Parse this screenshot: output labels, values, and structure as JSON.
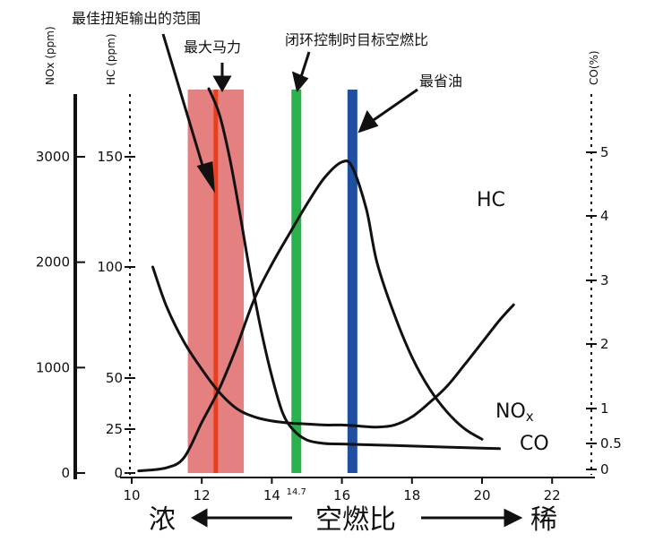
{
  "chart_data": {
    "type": "line",
    "xlabel": "空燃比",
    "x_ticks": [
      10,
      12,
      14,
      16,
      18,
      20,
      22
    ],
    "x_extra_tick": "14.7",
    "xlim": [
      10,
      23
    ],
    "axes": {
      "nox": {
        "name": "NOx (ppm)",
        "ticks": [
          0,
          1000,
          2000,
          3000
        ],
        "lim": [
          0,
          3500
        ]
      },
      "hc": {
        "name": "HC (ppm)",
        "ticks": [
          "0",
          "25",
          "50",
          "100",
          "150"
        ]
      },
      "co": {
        "name": "CO(%)",
        "ticks": [
          "0",
          "0.5",
          "1",
          "2",
          "3",
          "4",
          "5"
        ]
      }
    },
    "series": [
      {
        "name": "HC",
        "axis": "hc",
        "color": "#111111",
        "points": [
          [
            10.6,
            100
          ],
          [
            11,
            82
          ],
          [
            11.5,
            66
          ],
          [
            12,
            54
          ],
          [
            12.5,
            43
          ],
          [
            13,
            35
          ],
          [
            13.5,
            31
          ],
          [
            14,
            29
          ],
          [
            14.5,
            28
          ],
          [
            15,
            27.5
          ],
          [
            15.5,
            27
          ],
          [
            16,
            27
          ],
          [
            16.5,
            26.5
          ],
          [
            17,
            26
          ],
          [
            17.5,
            27
          ],
          [
            18,
            31
          ],
          [
            18.5,
            38
          ],
          [
            19,
            46
          ],
          [
            19.5,
            56
          ],
          [
            20,
            66
          ],
          [
            20.5,
            76
          ],
          [
            20.9,
            83
          ]
        ]
      },
      {
        "name": "NOx",
        "axis": "nox",
        "color": "#111111",
        "points": [
          [
            10.2,
            20
          ],
          [
            11,
            50
          ],
          [
            11.5,
            150
          ],
          [
            12,
            480
          ],
          [
            12.5,
            800
          ],
          [
            13,
            1200
          ],
          [
            13.5,
            1650
          ],
          [
            14,
            1980
          ],
          [
            14.5,
            2270
          ],
          [
            15,
            2550
          ],
          [
            15.5,
            2800
          ],
          [
            16,
            2950
          ],
          [
            16.3,
            2900
          ],
          [
            16.7,
            2500
          ],
          [
            17,
            2000
          ],
          [
            17.5,
            1500
          ],
          [
            18,
            1100
          ],
          [
            18.5,
            800
          ],
          [
            19,
            580
          ],
          [
            19.5,
            420
          ],
          [
            20,
            320
          ]
        ]
      },
      {
        "name": "CO",
        "axis": "co",
        "color": "#111111",
        "points": [
          [
            12.2,
            6.0
          ],
          [
            12.5,
            5.6
          ],
          [
            12.8,
            4.9
          ],
          [
            13.1,
            4.0
          ],
          [
            13.4,
            3.05
          ],
          [
            13.7,
            2.2
          ],
          [
            14,
            1.5
          ],
          [
            14.3,
            0.95
          ],
          [
            14.6,
            0.7
          ],
          [
            15,
            0.55
          ],
          [
            15.5,
            0.5
          ],
          [
            16,
            0.49
          ],
          [
            17,
            0.47
          ],
          [
            18,
            0.45
          ],
          [
            19,
            0.43
          ],
          [
            20,
            0.41
          ],
          [
            20.5,
            0.4
          ]
        ]
      }
    ],
    "bands": [
      {
        "name": "最佳扭矩输出的范围",
        "x_range": [
          11.6,
          13.2
        ],
        "color": "#e06a6a"
      }
    ],
    "lines": [
      {
        "name": "最大马力",
        "x": 12.4,
        "color": "#e8401f"
      },
      {
        "name": "闭环控制时目标空燃比",
        "x": 14.7,
        "color": "#28b14c"
      },
      {
        "name": "最省油",
        "x": 16.3,
        "color": "#1e4fa0"
      }
    ],
    "direction_left": "浓",
    "direction_right": "稀",
    "curve_labels": {
      "hc": "HC",
      "nox": "NO",
      "nox_sub": "x",
      "co": "CO"
    }
  }
}
